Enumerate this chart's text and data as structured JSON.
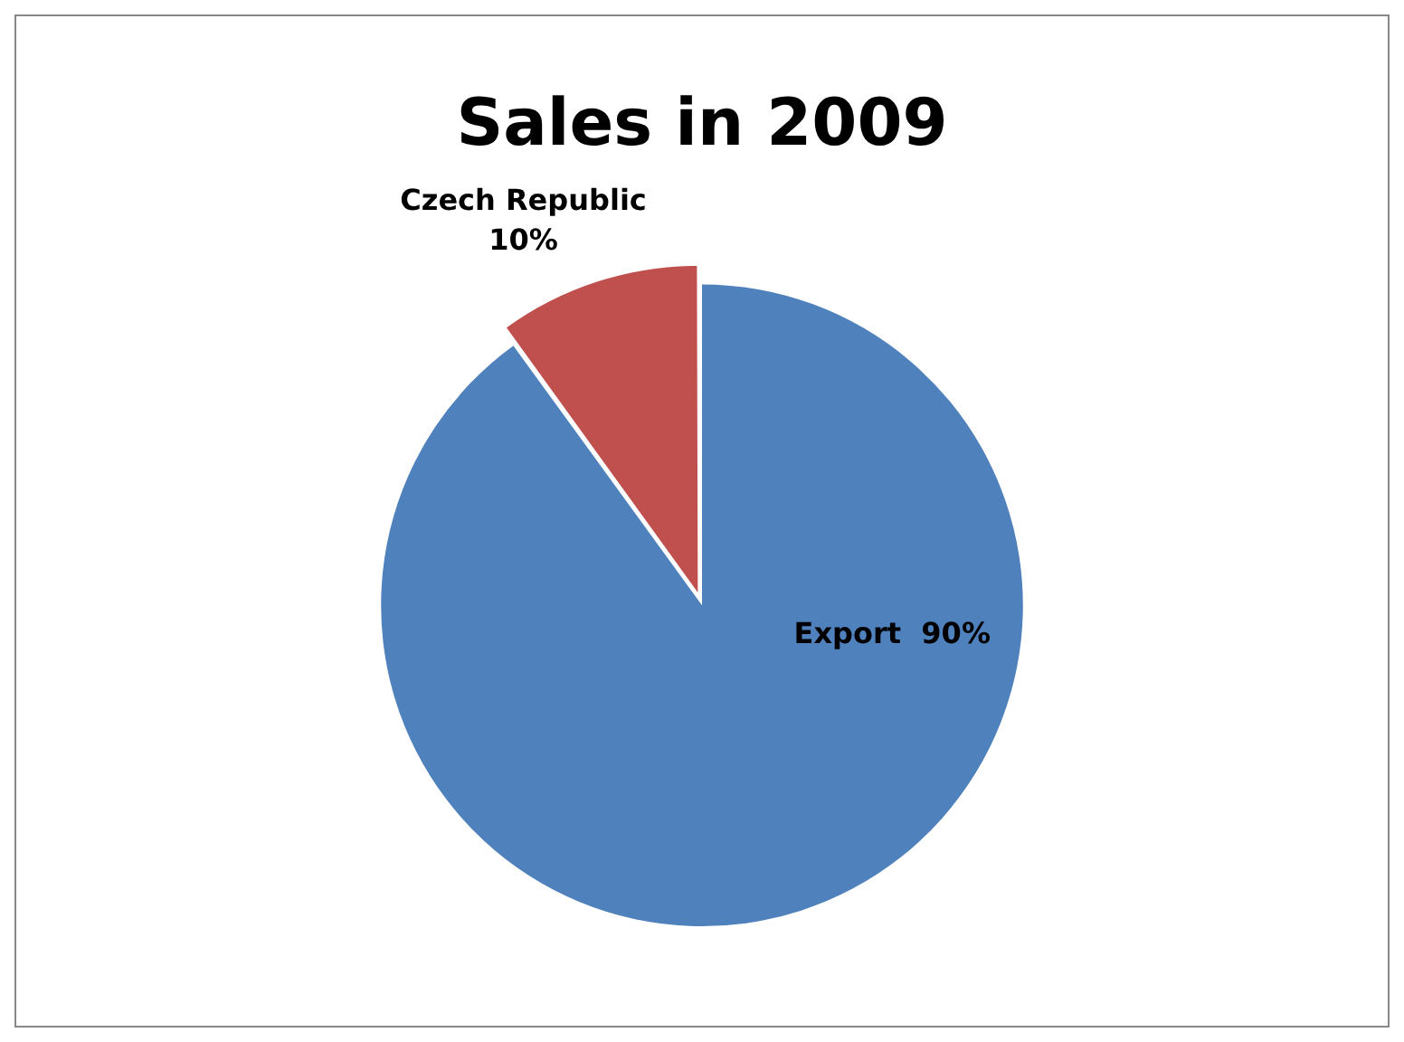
{
  "chart_data": {
    "type": "pie",
    "title": "Sales in 2009",
    "categories": [
      "Export",
      "Czech Republic"
    ],
    "values": [
      90,
      10
    ],
    "colors": [
      "#4f81bd",
      "#c0504d"
    ],
    "value_labels": [
      "90%",
      "10%"
    ],
    "legend": false
  }
}
